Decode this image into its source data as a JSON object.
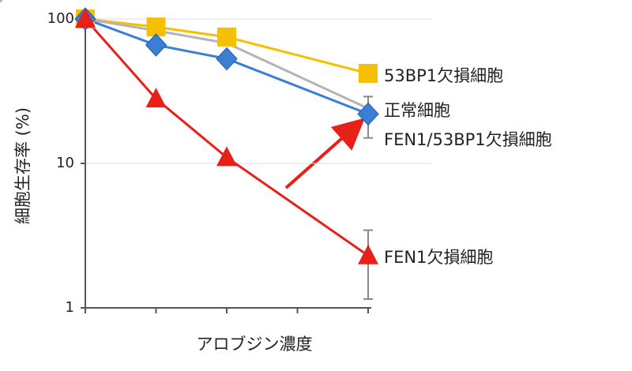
{
  "chart_data": {
    "type": "line",
    "y_label": "細胞生存率 (%)",
    "x_label": "アロブジン濃度",
    "x": [
      0,
      1,
      2,
      4
    ],
    "xlim": [
      0,
      4
    ],
    "xticks": [
      0,
      1,
      2,
      3,
      4
    ],
    "ylim": [
      1,
      100
    ],
    "yticks": [
      1,
      10,
      100
    ],
    "log_y": true,
    "grid": true,
    "series": [
      {
        "name": "53BP1欠損細胞",
        "color": "#f5c000",
        "marker": "square",
        "values": [
          100,
          88,
          75,
          42
        ]
      },
      {
        "name": "正常細胞",
        "color": "#b4b4b4",
        "marker": "none",
        "values": [
          100,
          83,
          68,
          24
        ]
      },
      {
        "name": "FEN1/53BP1欠損細胞",
        "color": "#3a7fd5",
        "marker": "diamond",
        "values": [
          100,
          66,
          53,
          22
        ],
        "errors": [
          null,
          null,
          null,
          7
        ]
      },
      {
        "name": "FEN1欠損細胞",
        "color": "#e8201a",
        "marker": "triangle",
        "values": [
          100,
          28,
          11,
          2.3
        ],
        "errors": [
          null,
          null,
          null,
          1.15
        ]
      }
    ]
  }
}
